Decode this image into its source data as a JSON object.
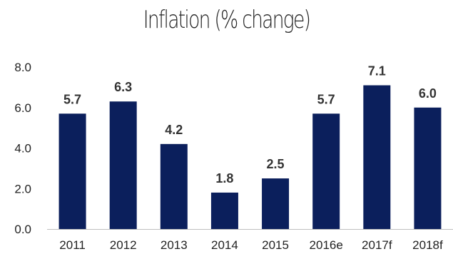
{
  "chart_data": {
    "type": "bar",
    "title": "Inflation (% change)",
    "categories": [
      "2011",
      "2012",
      "2013",
      "2014",
      "2015",
      "2016e",
      "2017f",
      "2018f"
    ],
    "values": [
      5.7,
      6.3,
      4.2,
      1.8,
      2.5,
      5.7,
      7.1,
      6.0
    ],
    "data_labels": [
      "5.7",
      "6.3",
      "4.2",
      "1.8",
      "2.5",
      "5.7",
      "7.1",
      "6.0"
    ],
    "y_ticks": [
      "0.0",
      "2.0",
      "4.0",
      "6.0",
      "8.0"
    ],
    "ylim": [
      0,
      8
    ],
    "xlabel": "",
    "ylabel": "",
    "grid": false,
    "legend": "none",
    "bar_color": "#0b1f5c"
  }
}
